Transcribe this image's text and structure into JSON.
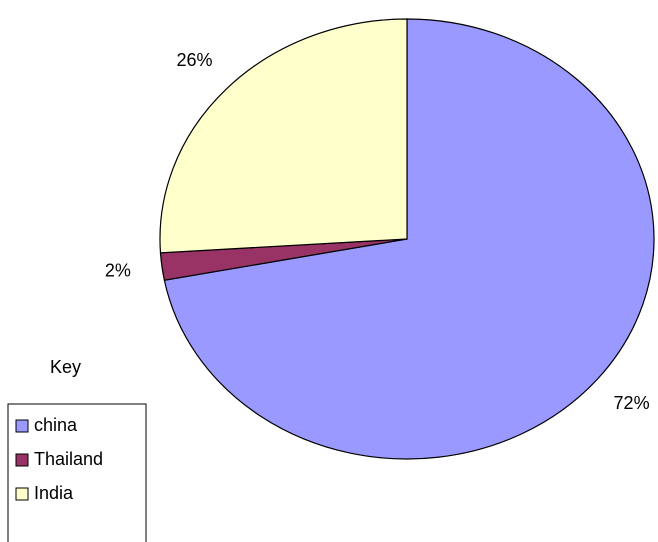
{
  "chart_data": {
    "type": "pie",
    "categories": [
      "china",
      "Thailand",
      "India"
    ],
    "values": [
      72,
      2,
      26
    ],
    "value_labels": [
      "72%",
      "2%",
      "26%"
    ],
    "colors": [
      "#9999ff",
      "#993366",
      "#ffffcc"
    ],
    "legend_title": "Key",
    "legend": "bottom-left"
  }
}
